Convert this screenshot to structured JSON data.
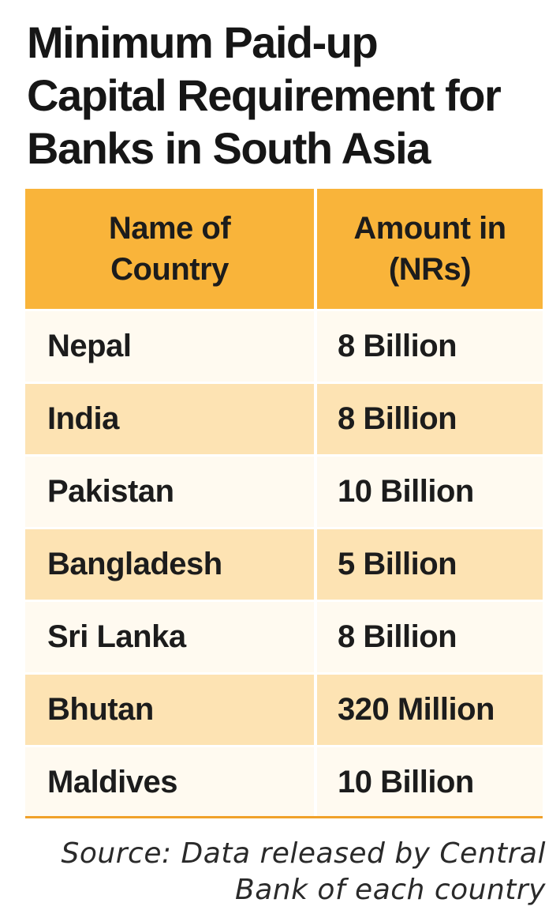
{
  "title": {
    "line1": "Minimum Paid-up",
    "line2": "Capital Requirement for",
    "line3": "Banks in South Asia"
  },
  "table": {
    "headers": {
      "country_line1": "Name of",
      "country_line2": "Country",
      "amount_line1": "Amount in",
      "amount_line2": "(NRs)"
    },
    "rows": [
      {
        "country": "Nepal",
        "amount": "8 Billion"
      },
      {
        "country": "India",
        "amount": "8 Billion"
      },
      {
        "country": "Pakistan",
        "amount": "10 Billion"
      },
      {
        "country": "Bangladesh",
        "amount": "5 Billion"
      },
      {
        "country": "Sri Lanka",
        "amount": "8 Billion"
      },
      {
        "country": "Bhutan",
        "amount": "320 Million"
      },
      {
        "country": "Maldives",
        "amount": "10 Billion"
      }
    ]
  },
  "source": {
    "line1": "Source: Data released by Central",
    "line2": "Bank of each country"
  },
  "colors": {
    "header_bg": "#f9b43a",
    "row_light": "#fffaf0",
    "row_dark": "#fde3b3",
    "rule": "#f0a12a"
  }
}
